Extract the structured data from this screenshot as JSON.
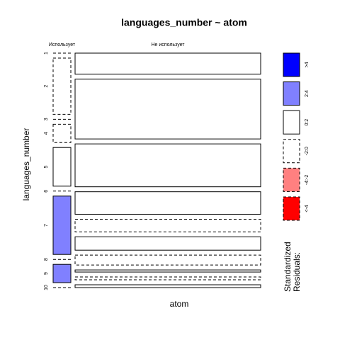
{
  "chart_data": {
    "type": "mosaic",
    "title": "languages_number ~ atom",
    "xlabel": "atom",
    "ylabel": "languages_number",
    "rows": [
      "1",
      "2",
      "3",
      "4",
      "5",
      "6",
      "7",
      "8",
      "9",
      "10"
    ],
    "columns": [
      {
        "name": "Использует",
        "width": 25,
        "values": [
          0,
          80,
          0,
          26,
          55,
          0,
          83,
          0,
          26,
          0
        ],
        "residual_bins": [
          "-2:0",
          "-2:0",
          "-2:0",
          "-2:0",
          "0:2",
          "-2:0",
          "2:4",
          "-2:0",
          "2:4",
          "-2:0"
        ]
      },
      {
        "name": "Не использует",
        "width": 262,
        "values": [
          30,
          85,
          61,
          32,
          18,
          19,
          14,
          3,
          4,
          4
        ],
        "residual_bins": [
          "0:2",
          "0:2",
          "0:2",
          "0:2",
          "-2:0",
          "0:2",
          "-2:0",
          "0:2",
          "-2:0",
          "0:2"
        ]
      }
    ],
    "legend": {
      "title": [
        "Standardized",
        "Residuals:"
      ],
      "items": [
        {
          "label": ">4",
          "color": "#0000ff",
          "dashed": false
        },
        {
          "label": "2:4",
          "color": "#8080ff",
          "dashed": false
        },
        {
          "label": "0:2",
          "color": "#ffffff",
          "dashed": false
        },
        {
          "label": "-2:0",
          "color": "#ffffff",
          "dashed": true
        },
        {
          "label": "-4:-2",
          "color": "#ff8080",
          "dashed": true
        },
        {
          "label": "<-4",
          "color": "#ff0000",
          "dashed": true
        }
      ]
    }
  }
}
